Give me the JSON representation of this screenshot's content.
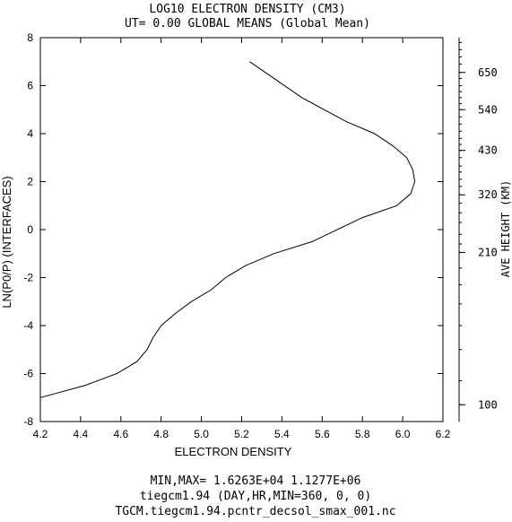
{
  "chart_data": {
    "type": "line",
    "title": "LOG10 ELECTRON DENSITY (CM3)",
    "subtitle": "UT= 0.00 GLOBAL MEANS (Global Mean)",
    "xlabel": "ELECTRON DENSITY",
    "ylabel": "LN(P0/P) (INTERFACES)",
    "right_ylabel": "AVE HEIGHT (KM)",
    "xlim": [
      4.2,
      6.2
    ],
    "ylim": [
      -8,
      8
    ],
    "x_ticks": [
      4.2,
      4.4,
      4.6,
      4.8,
      5.0,
      5.2,
      5.4,
      5.6,
      5.8,
      6.0,
      6.2
    ],
    "x_tick_labels": [
      "4.2",
      "4.4",
      "4.6",
      "4.8",
      "5.0",
      "5.2",
      "5.4",
      "5.6",
      "5.8",
      "6.0",
      "6.2"
    ],
    "y_ticks": [
      -8,
      -6,
      -4,
      -2,
      0,
      2,
      4,
      6,
      8
    ],
    "y_tick_labels": [
      "-8",
      "-6",
      "-4",
      "-2",
      "0",
      "2",
      "4",
      "6",
      "8"
    ],
    "right_axis": {
      "labels": [
        "650",
        "540",
        "430",
        "320",
        "210",
        "100"
      ],
      "label_at_y": [
        6.55,
        5.0,
        3.3,
        1.45,
        -0.95,
        -7.3
      ],
      "minor_ticks_y": [
        7.8,
        7.5,
        7.2,
        6.9,
        6.55,
        6.3,
        6.0,
        5.75,
        5.5,
        5.25,
        5.0,
        4.7,
        4.4,
        4.1,
        3.8,
        3.55,
        3.3,
        3.0,
        2.65,
        2.4,
        2.1,
        1.8,
        1.45,
        1.1,
        0.7,
        0.3,
        -0.2,
        -0.6,
        -0.95,
        -1.6,
        -2.3,
        -3.1,
        -4.0,
        -5.0,
        -6.3,
        -7.3
      ]
    },
    "grid": false,
    "series": [
      {
        "x": [
          4.2,
          4.42,
          4.58,
          4.68,
          4.73,
          4.76,
          4.8,
          4.87,
          4.95,
          5.05,
          5.12,
          5.22,
          5.36,
          5.55,
          5.8,
          5.97,
          6.04,
          6.06,
          6.05,
          6.02,
          5.95,
          5.86,
          5.72,
          5.5,
          5.24
        ],
        "y": [
          -7.0,
          -6.5,
          -6.0,
          -5.5,
          -5.0,
          -4.5,
          -4.0,
          -3.5,
          -3.0,
          -2.5,
          -2.0,
          -1.5,
          -1.0,
          -0.5,
          0.5,
          1.0,
          1.5,
          2.0,
          2.5,
          3.0,
          3.5,
          4.0,
          4.5,
          5.5,
          7.0
        ]
      }
    ]
  },
  "footer": {
    "line1": "MIN,MAX=  1.6263E+04  1.1277E+06",
    "line2": "tiegcm1.94 (DAY,HR,MIN=360, 0, 0)",
    "line3": "TGCM.tiegcm1.94.pcntr_decsol_smax_001.nc"
  },
  "colors": {
    "line": "#000000",
    "axis": "#000000"
  }
}
